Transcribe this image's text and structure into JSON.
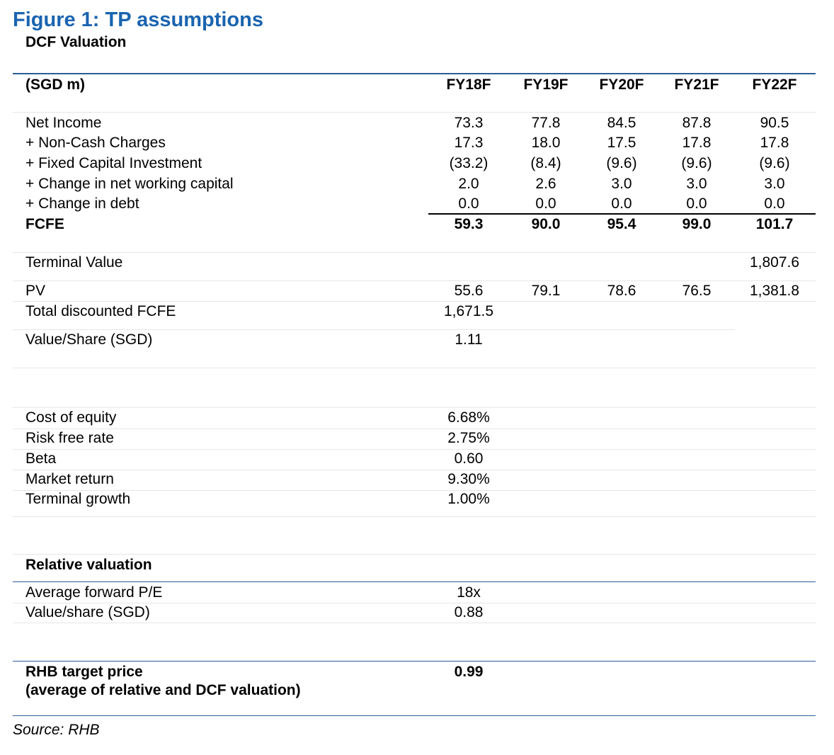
{
  "figure": {
    "title": "Figure 1:  TP assumptions",
    "subtitle": "DCF Valuation"
  },
  "dcf": {
    "unit_label": "(SGD m)",
    "columns": [
      "FY18F",
      "FY19F",
      "FY20F",
      "FY21F",
      "FY22F"
    ],
    "rows": [
      {
        "label": "Net Income",
        "values": [
          "73.3",
          "77.8",
          "84.5",
          "87.8",
          "90.5"
        ]
      },
      {
        "label": "+ Non-Cash Charges",
        "values": [
          "17.3",
          "18.0",
          "17.5",
          "17.8",
          "17.8"
        ]
      },
      {
        "label": "+ Fixed Capital Investment",
        "values": [
          "(33.2)",
          "(8.4)",
          "(9.6)",
          "(9.6)",
          "(9.6)"
        ]
      },
      {
        "label": "+ Change in net working capital",
        "values": [
          "2.0",
          "2.6",
          "3.0",
          "3.0",
          "3.0"
        ]
      },
      {
        "label": "+ Change in debt",
        "values": [
          "0.0",
          "0.0",
          "0.0",
          "0.0",
          "0.0"
        ]
      }
    ],
    "fcfe": {
      "label": "FCFE",
      "values": [
        "59.3",
        "90.0",
        "95.4",
        "99.0",
        "101.7"
      ]
    },
    "terminal_value": {
      "label": "Terminal Value",
      "value": "1,807.6"
    },
    "pv": {
      "label": "PV",
      "values": [
        "55.6",
        "79.1",
        "78.6",
        "76.5",
        "1,381.8"
      ]
    },
    "total_discounted": {
      "label": "Total discounted FCFE",
      "value": "1,671.5"
    },
    "value_per_share": {
      "label": "Value/Share (SGD)",
      "value": "1.11"
    }
  },
  "assumptions": [
    {
      "label": "Cost of equity",
      "value": "6.68%"
    },
    {
      "label": "Risk free rate",
      "value": "2.75%"
    },
    {
      "label": "Beta",
      "value": "0.60"
    },
    {
      "label": "Market return",
      "value": "9.30%"
    },
    {
      "label": "Terminal growth",
      "value": "1.00%"
    }
  ],
  "relative": {
    "heading": "Relative valuation",
    "rows": [
      {
        "label": "Average forward P/E",
        "value": "18x"
      },
      {
        "label": "Value/share (SGD)",
        "value": "0.88"
      }
    ]
  },
  "target": {
    "label_line1": "RHB target price",
    "label_line2": "(average of relative and DCF valuation)",
    "value": "0.99"
  },
  "source": "Source: RHB"
}
